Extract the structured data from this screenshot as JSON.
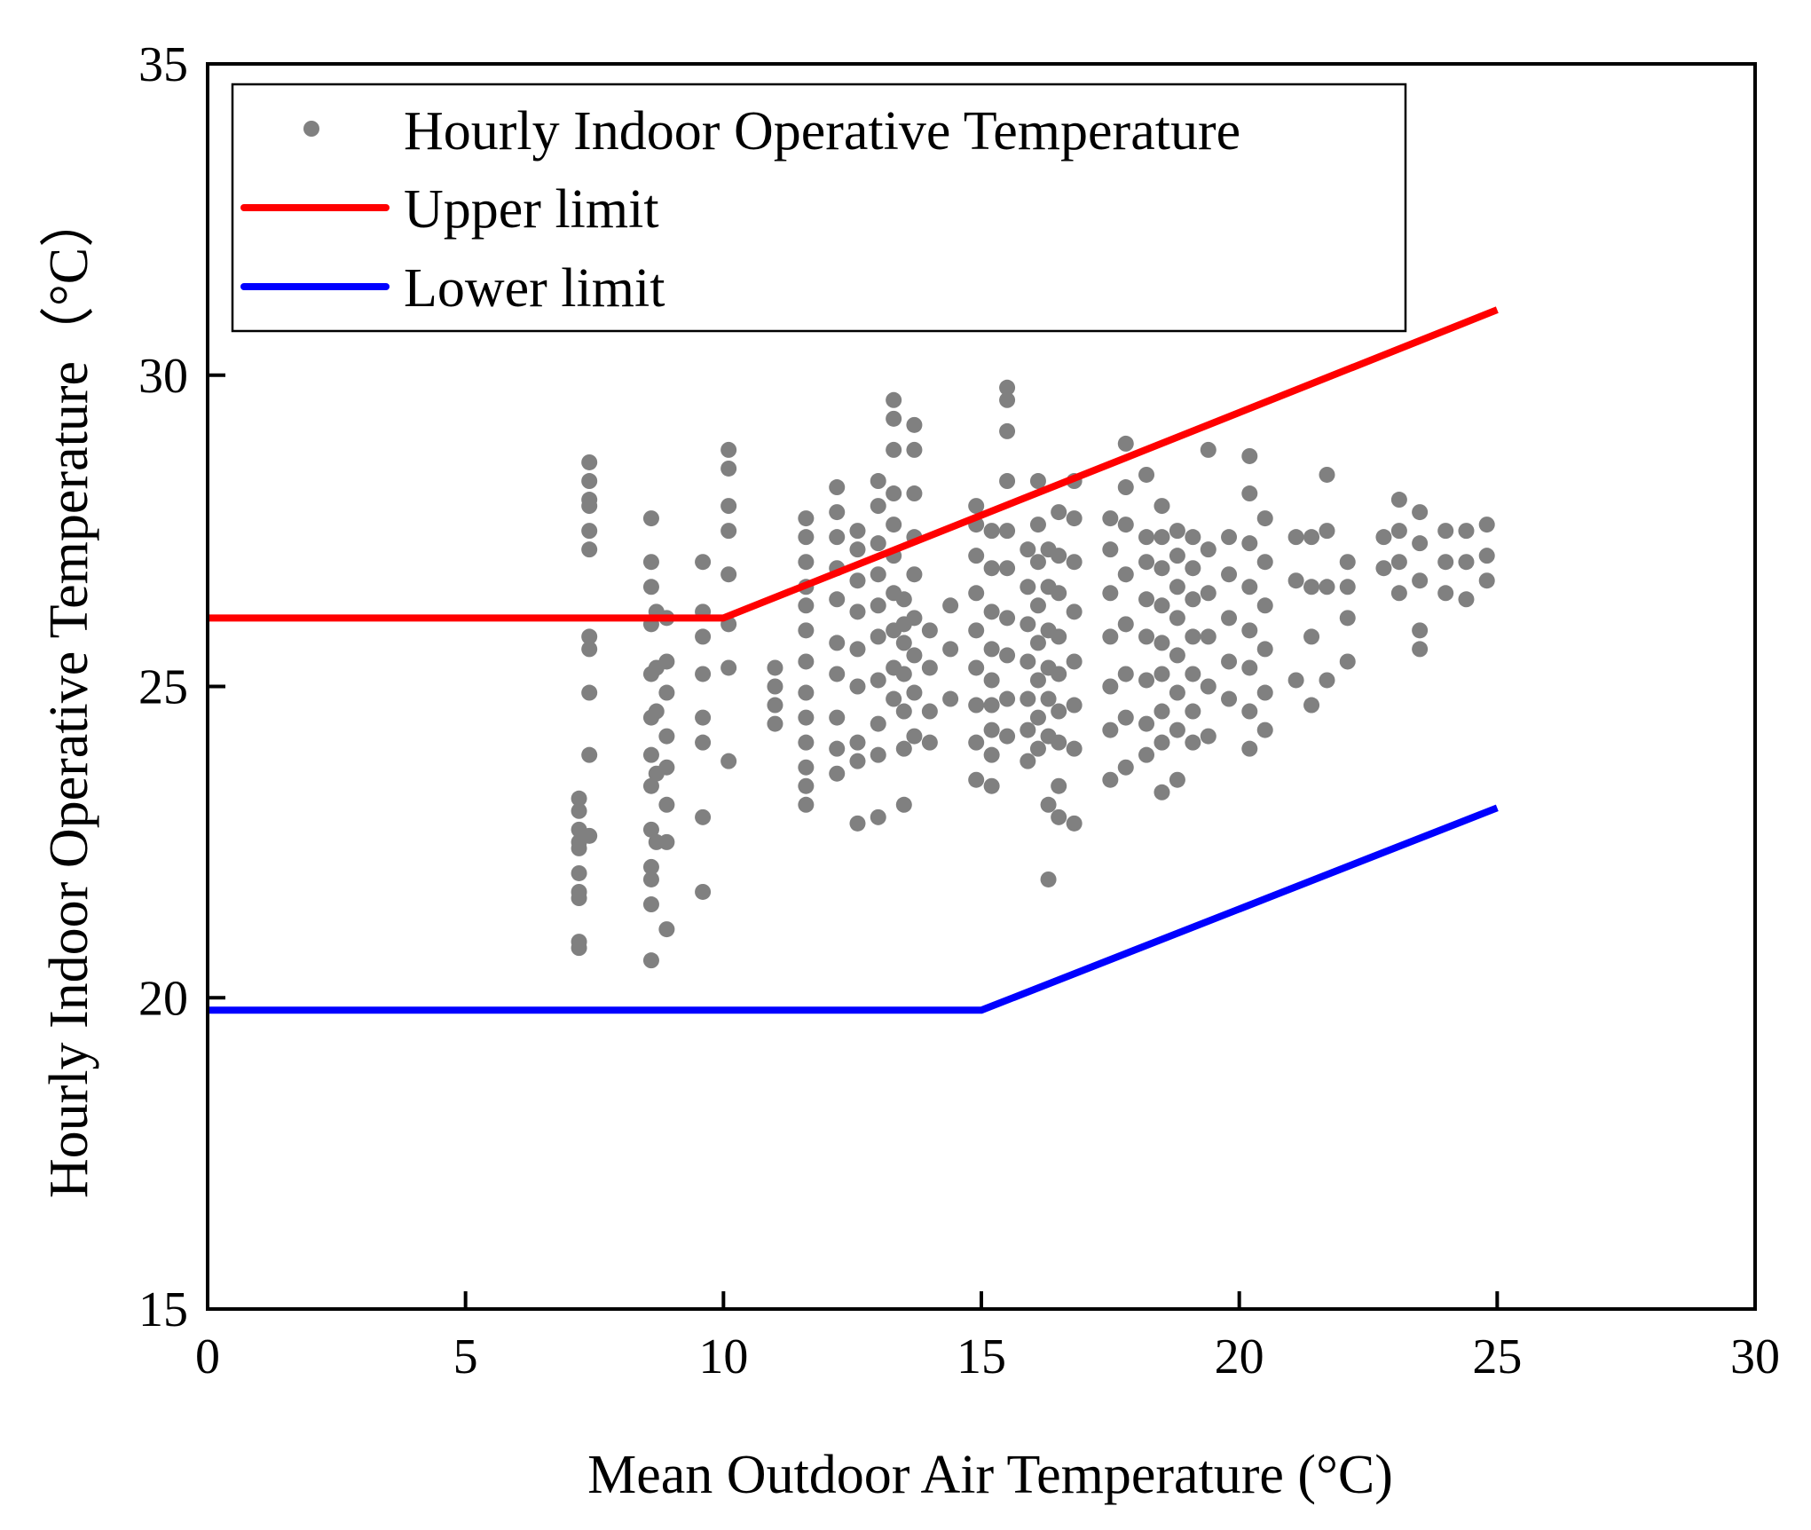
{
  "chart_data": {
    "type": "scatter",
    "title": "",
    "xlabel": "Mean Outdoor Air Temperature (°C)",
    "ylabel": "Hourly Indoor Operative Temperature（°C）",
    "xlim": [
      0,
      30
    ],
    "ylim": [
      15,
      35
    ],
    "xticks": [
      0,
      5,
      10,
      15,
      20,
      25,
      30
    ],
    "yticks": [
      15,
      20,
      25,
      30,
      35
    ],
    "xtick_labels": [
      "0",
      "5",
      "10",
      "15",
      "20",
      "25",
      "30"
    ],
    "ytick_labels": [
      "15",
      "20",
      "25",
      "30",
      "35"
    ],
    "grid": false,
    "legend_position": "top-left",
    "colors": {
      "points": "#808080",
      "upper": "#ff0000",
      "lower": "#0000ff",
      "axis": "#000000"
    },
    "series": [
      {
        "name": "Hourly Indoor Operative Temperature",
        "kind": "scatter",
        "columns": [
          {
            "x": 7.2,
            "values": [
              20.8,
              20.9,
              21.6,
              21.7,
              22.0,
              22.4,
              22.5,
              22.7,
              23.0,
              23.2
            ]
          },
          {
            "x": 7.4,
            "values": [
              22.6,
              23.9,
              24.9,
              25.6,
              25.8,
              27.2,
              27.5,
              27.9,
              28.0,
              28.3,
              28.6
            ]
          },
          {
            "x": 8.6,
            "values": [
              20.6,
              21.5,
              21.9,
              22.1,
              22.7,
              23.4,
              23.9,
              24.5,
              25.2,
              26.0,
              26.6,
              27.0,
              27.7
            ]
          },
          {
            "x": 8.7,
            "values": [
              22.5,
              23.6,
              24.6,
              25.3,
              26.2
            ]
          },
          {
            "x": 8.9,
            "values": [
              21.1,
              22.5,
              23.1,
              23.7,
              24.2,
              24.9,
              25.4,
              26.1
            ]
          },
          {
            "x": 9.6,
            "values": [
              21.7,
              22.9,
              24.1,
              24.5,
              25.2,
              25.8,
              26.2,
              27.0
            ]
          },
          {
            "x": 10.1,
            "values": [
              23.8,
              25.3,
              26.0,
              26.8,
              27.5,
              27.9,
              28.5,
              28.8
            ]
          },
          {
            "x": 11.0,
            "values": [
              24.4,
              24.7,
              25.0,
              25.3
            ]
          },
          {
            "x": 11.6,
            "values": [
              23.1,
              23.4,
              23.7,
              24.1,
              24.5,
              24.9,
              25.4,
              25.9,
              26.3,
              26.6,
              27.0,
              27.4,
              27.7
            ]
          },
          {
            "x": 12.2,
            "values": [
              23.6,
              24.0,
              24.5,
              25.2,
              25.7,
              26.4,
              26.9,
              27.4,
              27.8,
              28.2
            ]
          },
          {
            "x": 12.6,
            "values": [
              22.8,
              23.8,
              24.1,
              25.0,
              25.6,
              26.2,
              26.7,
              27.2,
              27.5
            ]
          },
          {
            "x": 13.0,
            "values": [
              22.9,
              23.9,
              24.4,
              25.1,
              25.8,
              26.3,
              26.8,
              27.3,
              27.9,
              28.3
            ]
          },
          {
            "x": 13.3,
            "values": [
              24.8,
              25.3,
              25.9,
              26.5,
              27.1,
              27.6,
              28.1,
              28.8,
              29.3,
              29.6
            ]
          },
          {
            "x": 13.5,
            "values": [
              23.1,
              24.0,
              24.6,
              25.2,
              25.7,
              26.0,
              26.4
            ]
          },
          {
            "x": 13.7,
            "values": [
              24.2,
              24.9,
              25.5,
              26.1,
              26.8,
              27.4,
              28.1,
              28.8,
              29.2
            ]
          },
          {
            "x": 14.0,
            "values": [
              24.1,
              24.6,
              25.3,
              25.9
            ]
          },
          {
            "x": 14.4,
            "values": [
              24.8,
              25.6,
              26.3
            ]
          },
          {
            "x": 14.9,
            "values": [
              23.5,
              24.1,
              24.7,
              25.3,
              25.9,
              26.5,
              27.1,
              27.6,
              27.9
            ]
          },
          {
            "x": 15.2,
            "values": [
              23.4,
              23.9,
              24.3,
              24.7,
              25.1,
              25.6,
              26.2,
              26.9,
              27.5
            ]
          },
          {
            "x": 15.5,
            "values": [
              24.2,
              24.8,
              25.5,
              26.1,
              26.9,
              27.5,
              28.3,
              29.1,
              29.6,
              29.8
            ]
          },
          {
            "x": 15.9,
            "values": [
              23.8,
              24.3,
              24.8,
              25.4,
              26.0,
              26.6,
              27.2
            ]
          },
          {
            "x": 16.1,
            "values": [
              24.0,
              24.5,
              25.1,
              25.7,
              26.3,
              27.0,
              27.6,
              28.3
            ]
          },
          {
            "x": 16.3,
            "values": [
              21.9,
              23.1,
              24.2,
              24.8,
              25.3,
              25.9,
              26.6,
              27.2
            ]
          },
          {
            "x": 16.5,
            "values": [
              22.9,
              23.4,
              24.1,
              24.6,
              25.2,
              25.8,
              26.5,
              27.1,
              27.8
            ]
          },
          {
            "x": 16.8,
            "values": [
              22.8,
              24.0,
              24.7,
              25.4,
              26.2,
              27.0,
              27.7,
              28.3
            ]
          },
          {
            "x": 17.5,
            "values": [
              23.5,
              24.3,
              25.0,
              25.8,
              26.5,
              27.2,
              27.7
            ]
          },
          {
            "x": 17.8,
            "values": [
              23.7,
              24.5,
              25.2,
              26.0,
              26.8,
              27.6,
              28.2,
              28.9
            ]
          },
          {
            "x": 18.2,
            "values": [
              23.9,
              24.4,
              25.1,
              25.8,
              26.4,
              27.0,
              27.4,
              28.4
            ]
          },
          {
            "x": 18.5,
            "values": [
              23.3,
              24.1,
              24.6,
              25.2,
              25.7,
              26.3,
              26.9,
              27.4,
              27.9
            ]
          },
          {
            "x": 18.8,
            "values": [
              23.5,
              24.3,
              24.9,
              25.5,
              26.1,
              26.6,
              27.1,
              27.5
            ]
          },
          {
            "x": 19.1,
            "values": [
              24.1,
              24.6,
              25.2,
              25.8,
              26.4,
              26.9,
              27.4
            ]
          },
          {
            "x": 19.4,
            "values": [
              24.2,
              25.0,
              25.8,
              26.5,
              27.2,
              28.8
            ]
          },
          {
            "x": 19.8,
            "values": [
              24.8,
              25.4,
              26.1,
              26.8,
              27.4
            ]
          },
          {
            "x": 20.2,
            "values": [
              24.0,
              24.6,
              25.3,
              25.9,
              26.6,
              27.3,
              28.1,
              28.7
            ]
          },
          {
            "x": 20.5,
            "values": [
              24.3,
              24.9,
              25.6,
              26.3,
              27.0,
              27.7
            ]
          },
          {
            "x": 21.1,
            "values": [
              25.1,
              26.7,
              27.4
            ]
          },
          {
            "x": 21.4,
            "values": [
              24.7,
              25.8,
              26.6,
              27.4
            ]
          },
          {
            "x": 21.7,
            "values": [
              25.1,
              26.6,
              27.5,
              28.4
            ]
          },
          {
            "x": 22.1,
            "values": [
              25.4,
              26.1,
              26.6,
              27.0
            ]
          },
          {
            "x": 22.8,
            "values": [
              26.9,
              27.4
            ]
          },
          {
            "x": 23.1,
            "values": [
              26.5,
              27.0,
              27.5,
              28.0
            ]
          },
          {
            "x": 23.5,
            "values": [
              25.6,
              25.9,
              26.7,
              27.3,
              27.8
            ]
          },
          {
            "x": 24.0,
            "values": [
              26.5,
              27.0,
              27.5
            ]
          },
          {
            "x": 24.4,
            "values": [
              26.4,
              27.0,
              27.5
            ]
          },
          {
            "x": 24.8,
            "values": [
              26.7,
              27.1,
              27.6
            ]
          }
        ]
      },
      {
        "name": "Upper limit",
        "kind": "line",
        "x": [
          0,
          10,
          25
        ],
        "y": [
          26.1,
          26.1,
          31.05
        ]
      },
      {
        "name": "Lower limit",
        "kind": "line",
        "x": [
          0,
          15,
          25
        ],
        "y": [
          19.8,
          19.8,
          23.05
        ]
      }
    ]
  }
}
